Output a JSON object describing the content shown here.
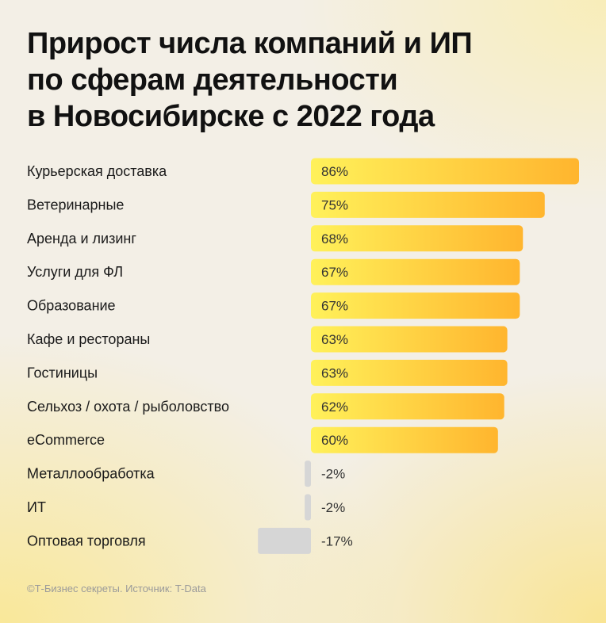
{
  "title_lines": [
    "Прирост числа компаний и ИП",
    "по сферам деятельности",
    "в Новосибирске с 2022 года"
  ],
  "source": "©Т-Бизнес секреты. Источник: T-Data",
  "colors": {
    "positive_start": "#fff15a",
    "positive_end": "#ffb52e",
    "negative": "#d6d6d6",
    "background": "#f3efe6"
  },
  "chart_data": {
    "type": "bar",
    "orientation": "horizontal",
    "unit": "%",
    "categories": [
      "Курьерская доставка",
      "Ветеринарные",
      "Аренда и лизинг",
      "Услуги для ФЛ",
      "Образование",
      "Кафе и рестораны",
      "Гостиницы",
      "Сельхоз / охота / рыболовство",
      "eCommerce",
      "Металлообработка",
      "ИТ",
      "Оптовая торговля"
    ],
    "values": [
      86,
      75,
      68,
      67,
      67,
      63,
      63,
      62,
      60,
      -2,
      -2,
      -17
    ],
    "value_labels": [
      "86%",
      "75%",
      "68%",
      "67%",
      "67%",
      "63%",
      "63%",
      "62%",
      "60%",
      "-2%",
      "-2%",
      "-17%"
    ],
    "xlim": [
      -17,
      86
    ],
    "grid": false,
    "legend": "none"
  }
}
